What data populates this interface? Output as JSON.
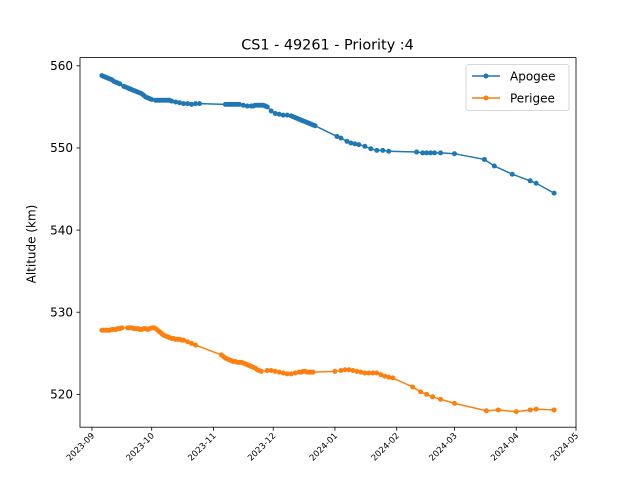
{
  "chart_data": {
    "type": "line",
    "title": "CS1 - 49261 - Priority :4",
    "xlabel": "",
    "ylabel": "Altitude (km)",
    "x_type": "date",
    "xlim": [
      "2023-08-26",
      "2024-05-01"
    ],
    "ylim": [
      516,
      561
    ],
    "xticks": [
      "2023-09-01",
      "2023-10-01",
      "2023-11-01",
      "2023-12-01",
      "2024-01-01",
      "2024-02-01",
      "2024-03-01",
      "2024-04-01",
      "2024-05-01"
    ],
    "xtick_labels": [
      "2023-09",
      "2023-10",
      "2023-11",
      "2023-12",
      "2024-01",
      "2024-02",
      "2024-03",
      "2024-04",
      "2024-05"
    ],
    "yticks": [
      520,
      530,
      540,
      550,
      560
    ],
    "ytick_labels": [
      "520",
      "530",
      "540",
      "550",
      "560"
    ],
    "legend": "top-right",
    "grid": false,
    "series": [
      {
        "name": "Apogee",
        "color": "#1f77b4",
        "points": [
          [
            "2023-09-06",
            558.8
          ],
          [
            "2023-09-07",
            558.7
          ],
          [
            "2023-09-08",
            558.6
          ],
          [
            "2023-09-09",
            558.5
          ],
          [
            "2023-09-10",
            558.4
          ],
          [
            "2023-09-11",
            558.3
          ],
          [
            "2023-09-12",
            558.1
          ],
          [
            "2023-09-13",
            558.0
          ],
          [
            "2023-09-14",
            557.9
          ],
          [
            "2023-09-15",
            557.8
          ],
          [
            "2023-09-17",
            557.5
          ],
          [
            "2023-09-18",
            557.4
          ],
          [
            "2023-09-19",
            557.3
          ],
          [
            "2023-09-20",
            557.2
          ],
          [
            "2023-09-21",
            557.1
          ],
          [
            "2023-09-22",
            557.0
          ],
          [
            "2023-09-23",
            556.9
          ],
          [
            "2023-09-24",
            556.8
          ],
          [
            "2023-09-25",
            556.7
          ],
          [
            "2023-09-26",
            556.6
          ],
          [
            "2023-09-27",
            556.4
          ],
          [
            "2023-09-28",
            556.2
          ],
          [
            "2023-09-29",
            556.1
          ],
          [
            "2023-09-30",
            556.0
          ],
          [
            "2023-10-01",
            555.9
          ],
          [
            "2023-10-03",
            555.8
          ],
          [
            "2023-10-04",
            555.8
          ],
          [
            "2023-10-05",
            555.8
          ],
          [
            "2023-10-06",
            555.8
          ],
          [
            "2023-10-07",
            555.8
          ],
          [
            "2023-10-08",
            555.8
          ],
          [
            "2023-10-09",
            555.8
          ],
          [
            "2023-10-10",
            555.8
          ],
          [
            "2023-10-11",
            555.7
          ],
          [
            "2023-10-13",
            555.6
          ],
          [
            "2023-10-15",
            555.5
          ],
          [
            "2023-10-17",
            555.4
          ],
          [
            "2023-10-19",
            555.4
          ],
          [
            "2023-10-21",
            555.3
          ],
          [
            "2023-10-23",
            555.4
          ],
          [
            "2023-10-25",
            555.4
          ],
          [
            "2023-11-07",
            555.3
          ],
          [
            "2023-11-08",
            555.3
          ],
          [
            "2023-11-09",
            555.3
          ],
          [
            "2023-11-10",
            555.3
          ],
          [
            "2023-11-11",
            555.3
          ],
          [
            "2023-11-12",
            555.3
          ],
          [
            "2023-11-13",
            555.3
          ],
          [
            "2023-11-14",
            555.3
          ],
          [
            "2023-11-16",
            555.2
          ],
          [
            "2023-11-18",
            555.1
          ],
          [
            "2023-11-20",
            555.1
          ],
          [
            "2023-11-21",
            555.1
          ],
          [
            "2023-11-22",
            555.2
          ],
          [
            "2023-11-23",
            555.2
          ],
          [
            "2023-11-24",
            555.2
          ],
          [
            "2023-11-25",
            555.2
          ],
          [
            "2023-11-26",
            555.2
          ],
          [
            "2023-11-27",
            555.1
          ],
          [
            "2023-11-28",
            555.0
          ],
          [
            "2023-11-30",
            554.5
          ],
          [
            "2023-12-02",
            554.2
          ],
          [
            "2023-12-04",
            554.1
          ],
          [
            "2023-12-06",
            554.0
          ],
          [
            "2023-12-08",
            554.0
          ],
          [
            "2023-12-10",
            553.9
          ],
          [
            "2023-12-11",
            553.8
          ],
          [
            "2023-12-12",
            553.7
          ],
          [
            "2023-12-13",
            553.6
          ],
          [
            "2023-12-14",
            553.5
          ],
          [
            "2023-12-15",
            553.4
          ],
          [
            "2023-12-16",
            553.3
          ],
          [
            "2023-12-17",
            553.2
          ],
          [
            "2023-12-18",
            553.1
          ],
          [
            "2023-12-19",
            553.0
          ],
          [
            "2023-12-20",
            552.9
          ],
          [
            "2023-12-21",
            552.8
          ],
          [
            "2023-12-22",
            552.7
          ],
          [
            "2024-01-02",
            551.4
          ],
          [
            "2024-01-04",
            551.2
          ],
          [
            "2024-01-07",
            550.8
          ],
          [
            "2024-01-09",
            550.6
          ],
          [
            "2024-01-11",
            550.5
          ],
          [
            "2024-01-13",
            550.4
          ],
          [
            "2024-01-16",
            550.2
          ],
          [
            "2024-01-19",
            549.9
          ],
          [
            "2024-01-22",
            549.7
          ],
          [
            "2024-01-25",
            549.7
          ],
          [
            "2024-01-28",
            549.6
          ],
          [
            "2024-02-11",
            549.5
          ],
          [
            "2024-02-14",
            549.4
          ],
          [
            "2024-02-16",
            549.4
          ],
          [
            "2024-02-18",
            549.4
          ],
          [
            "2024-02-20",
            549.4
          ],
          [
            "2024-02-23",
            549.4
          ],
          [
            "2024-03-01",
            549.3
          ],
          [
            "2024-03-16",
            548.6
          ],
          [
            "2024-03-21",
            547.8
          ],
          [
            "2024-03-30",
            546.8
          ],
          [
            "2024-04-08",
            546.0
          ],
          [
            "2024-04-11",
            545.7
          ],
          [
            "2024-04-20",
            544.5
          ]
        ]
      },
      {
        "name": "Perigee",
        "color": "#ff7f0e",
        "points": [
          [
            "2023-09-06",
            527.8
          ],
          [
            "2023-09-07",
            527.8
          ],
          [
            "2023-09-08",
            527.8
          ],
          [
            "2023-09-09",
            527.8
          ],
          [
            "2023-09-10",
            527.8
          ],
          [
            "2023-09-11",
            527.9
          ],
          [
            "2023-09-12",
            527.9
          ],
          [
            "2023-09-13",
            527.9
          ],
          [
            "2023-09-14",
            528.0
          ],
          [
            "2023-09-15",
            528.0
          ],
          [
            "2023-09-16",
            528.1
          ],
          [
            "2023-09-19",
            528.1
          ],
          [
            "2023-09-20",
            528.1
          ],
          [
            "2023-09-21",
            528.1
          ],
          [
            "2023-09-22",
            528.0
          ],
          [
            "2023-09-23",
            528.0
          ],
          [
            "2023-09-24",
            528.0
          ],
          [
            "2023-09-25",
            527.9
          ],
          [
            "2023-09-26",
            527.9
          ],
          [
            "2023-09-27",
            528.0
          ],
          [
            "2023-09-28",
            528.0
          ],
          [
            "2023-09-29",
            527.9
          ],
          [
            "2023-09-30",
            528.0
          ],
          [
            "2023-10-01",
            528.1
          ],
          [
            "2023-10-02",
            528.1
          ],
          [
            "2023-10-03",
            528.0
          ],
          [
            "2023-10-04",
            527.8
          ],
          [
            "2023-10-05",
            527.6
          ],
          [
            "2023-10-06",
            527.4
          ],
          [
            "2023-10-07",
            527.2
          ],
          [
            "2023-10-08",
            527.1
          ],
          [
            "2023-10-09",
            527.0
          ],
          [
            "2023-10-10",
            526.9
          ],
          [
            "2023-10-11",
            526.8
          ],
          [
            "2023-10-12",
            526.8
          ],
          [
            "2023-10-13",
            526.7
          ],
          [
            "2023-10-14",
            526.7
          ],
          [
            "2023-10-15",
            526.7
          ],
          [
            "2023-10-16",
            526.6
          ],
          [
            "2023-10-17",
            526.6
          ],
          [
            "2023-10-19",
            526.4
          ],
          [
            "2023-10-21",
            526.2
          ],
          [
            "2023-10-23",
            526.0
          ],
          [
            "2023-11-05",
            524.8
          ],
          [
            "2023-11-06",
            524.6
          ],
          [
            "2023-11-07",
            524.4
          ],
          [
            "2023-11-08",
            524.3
          ],
          [
            "2023-11-09",
            524.2
          ],
          [
            "2023-11-10",
            524.1
          ],
          [
            "2023-11-11",
            524.0
          ],
          [
            "2023-11-12",
            524.0
          ],
          [
            "2023-11-13",
            523.9
          ],
          [
            "2023-11-14",
            523.9
          ],
          [
            "2023-11-15",
            523.9
          ],
          [
            "2023-11-16",
            523.8
          ],
          [
            "2023-11-17",
            523.7
          ],
          [
            "2023-11-18",
            523.6
          ],
          [
            "2023-11-19",
            523.5
          ],
          [
            "2023-11-20",
            523.4
          ],
          [
            "2023-11-21",
            523.3
          ],
          [
            "2023-11-22",
            523.2
          ],
          [
            "2023-11-23",
            523.0
          ],
          [
            "2023-11-24",
            522.9
          ],
          [
            "2023-11-25",
            522.8
          ],
          [
            "2023-11-28",
            522.9
          ],
          [
            "2023-11-30",
            522.9
          ],
          [
            "2023-12-02",
            522.8
          ],
          [
            "2023-12-04",
            522.7
          ],
          [
            "2023-12-06",
            522.6
          ],
          [
            "2023-12-08",
            522.5
          ],
          [
            "2023-12-10",
            522.5
          ],
          [
            "2023-12-12",
            522.6
          ],
          [
            "2023-12-14",
            522.7
          ],
          [
            "2023-12-15",
            522.7
          ],
          [
            "2023-12-16",
            522.8
          ],
          [
            "2023-12-17",
            522.8
          ],
          [
            "2023-12-18",
            522.7
          ],
          [
            "2023-12-19",
            522.7
          ],
          [
            "2023-12-20",
            522.7
          ],
          [
            "2023-12-21",
            522.7
          ],
          [
            "2024-01-01",
            522.8
          ],
          [
            "2024-01-04",
            522.9
          ],
          [
            "2024-01-06",
            523.0
          ],
          [
            "2024-01-08",
            523.0
          ],
          [
            "2024-01-10",
            522.9
          ],
          [
            "2024-01-12",
            522.8
          ],
          [
            "2024-01-14",
            522.7
          ],
          [
            "2024-01-16",
            522.6
          ],
          [
            "2024-01-18",
            522.6
          ],
          [
            "2024-01-20",
            522.6
          ],
          [
            "2024-01-22",
            522.6
          ],
          [
            "2024-01-24",
            522.4
          ],
          [
            "2024-01-26",
            522.2
          ],
          [
            "2024-01-28",
            522.1
          ],
          [
            "2024-01-30",
            522.0
          ],
          [
            "2024-02-09",
            520.9
          ],
          [
            "2024-02-13",
            520.3
          ],
          [
            "2024-02-16",
            520.0
          ],
          [
            "2024-02-19",
            519.7
          ],
          [
            "2024-02-23",
            519.4
          ],
          [
            "2024-03-01",
            518.9
          ],
          [
            "2024-03-17",
            518.0
          ],
          [
            "2024-03-23",
            518.1
          ],
          [
            "2024-04-01",
            517.9
          ],
          [
            "2024-04-08",
            518.1
          ],
          [
            "2024-04-11",
            518.2
          ],
          [
            "2024-04-20",
            518.1
          ]
        ]
      }
    ]
  }
}
